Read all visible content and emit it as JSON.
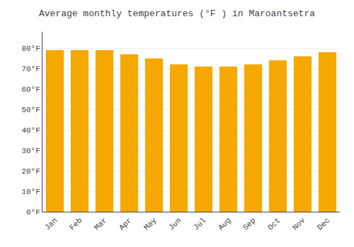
{
  "chart_data": {
    "type": "bar",
    "title": "Average monthly temperatures (°F ) in Maroantsetra",
    "categories": [
      "Jan",
      "Feb",
      "Mar",
      "Apr",
      "May",
      "Jun",
      "Jul",
      "Aug",
      "Sep",
      "Oct",
      "Nov",
      "Dec"
    ],
    "values": [
      79,
      79,
      79,
      77,
      75,
      72,
      71,
      71,
      72,
      74,
      76,
      78
    ],
    "color": "#F5A800",
    "ylim": [
      0,
      88
    ],
    "yticks": [
      {
        "value": 0,
        "label": "0°F"
      },
      {
        "value": 10,
        "label": "10°F"
      },
      {
        "value": 20,
        "label": "20°F"
      },
      {
        "value": 30,
        "label": "30°F"
      },
      {
        "value": 40,
        "label": "40°F"
      },
      {
        "value": 50,
        "label": "50°F"
      },
      {
        "value": 60,
        "label": "60°F"
      },
      {
        "value": 70,
        "label": "70°F"
      },
      {
        "value": 80,
        "label": "80°F"
      }
    ],
    "grid": true
  }
}
